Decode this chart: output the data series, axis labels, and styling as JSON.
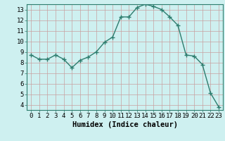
{
  "x": [
    0,
    1,
    2,
    3,
    4,
    5,
    6,
    7,
    8,
    9,
    10,
    11,
    12,
    13,
    14,
    15,
    16,
    17,
    18,
    19,
    20,
    21,
    22,
    23
  ],
  "y": [
    8.7,
    8.3,
    8.3,
    8.7,
    8.3,
    7.5,
    8.2,
    8.5,
    9.0,
    9.9,
    10.4,
    12.3,
    12.3,
    13.2,
    13.5,
    13.3,
    13.0,
    12.3,
    11.5,
    8.7,
    8.6,
    7.8,
    5.1,
    3.8
  ],
  "line_color": "#2d7d6e",
  "marker": "+",
  "markersize": 4,
  "linewidth": 1.0,
  "xlabel": "Humidex (Indice chaleur)",
  "xlabel_fontsize": 7.5,
  "bg_color": "#cef0f0",
  "grid_color": "#c0e0e0",
  "xlim": [
    -0.5,
    23.5
  ],
  "ylim": [
    3.5,
    13.5
  ],
  "xticks": [
    0,
    1,
    2,
    3,
    4,
    5,
    6,
    7,
    8,
    9,
    10,
    11,
    12,
    13,
    14,
    15,
    16,
    17,
    18,
    19,
    20,
    21,
    22,
    23
  ],
  "yticks": [
    4,
    5,
    6,
    7,
    8,
    9,
    10,
    11,
    12,
    13
  ],
  "tick_fontsize": 6.5,
  "spine_color": "#2d7d6e",
  "grid_minor_color": "#e8f8f8"
}
